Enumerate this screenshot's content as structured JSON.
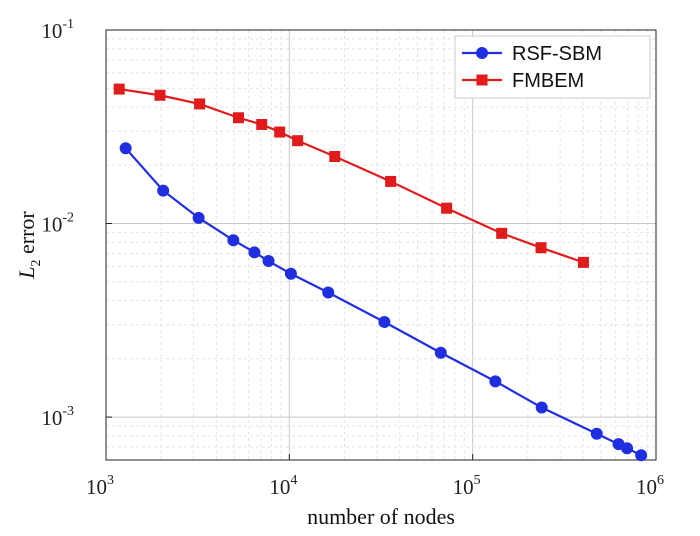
{
  "chart_data": {
    "type": "line",
    "x_scale": "log",
    "y_scale": "log",
    "xlim": [
      1000,
      1000000
    ],
    "ylim": [
      0.0006,
      0.1
    ],
    "xlabel": "number of nodes",
    "ylabel": {
      "base": "L",
      "subscript": "2",
      "rest": " error"
    },
    "xticks": [
      {
        "base": "10",
        "exp": "3"
      },
      {
        "base": "10",
        "exp": "4"
      },
      {
        "base": "10",
        "exp": "5"
      },
      {
        "base": "10",
        "exp": "6"
      }
    ],
    "yticks": [
      {
        "value": 0.001,
        "base": "10",
        "exp": "-3"
      },
      {
        "value": 0.01,
        "base": "10",
        "exp": "-2"
      },
      {
        "value": 0.1,
        "base": "10",
        "exp": "-1"
      }
    ],
    "grid": true,
    "legend": "top-right",
    "series": [
      {
        "name": "RSF-SBM",
        "color": "#1f2fe0",
        "marker": "circle",
        "x": [
          1280,
          2050,
          3200,
          4950,
          6450,
          7700,
          10200,
          16300,
          33000,
          67000,
          133000,
          238000,
          475000,
          625000,
          695000,
          830000
        ],
        "y": [
          0.0245,
          0.0148,
          0.0107,
          0.0082,
          0.0071,
          0.0064,
          0.0055,
          0.0044,
          0.0031,
          0.00215,
          0.00153,
          0.00112,
          0.00082,
          0.000725,
          0.00069,
          0.000635
        ]
      },
      {
        "name": "FMBEM",
        "color": "#e01b1b",
        "marker": "square",
        "x": [
          1180,
          1970,
          3240,
          5280,
          7070,
          8860,
          11100,
          17700,
          35700,
          72100,
          144000,
          236000,
          402000
        ],
        "y": [
          0.0495,
          0.046,
          0.0415,
          0.0352,
          0.0325,
          0.0297,
          0.0268,
          0.0222,
          0.0165,
          0.012,
          0.0089,
          0.0075,
          0.0063
        ]
      }
    ]
  }
}
